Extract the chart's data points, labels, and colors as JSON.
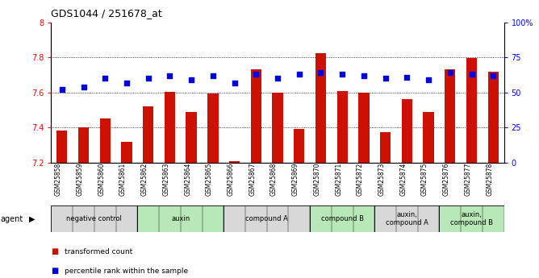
{
  "title": "GDS1044 / 251678_at",
  "samples": [
    "GSM25858",
    "GSM25859",
    "GSM25860",
    "GSM25861",
    "GSM25862",
    "GSM25863",
    "GSM25864",
    "GSM25865",
    "GSM25866",
    "GSM25867",
    "GSM25868",
    "GSM25869",
    "GSM25870",
    "GSM25871",
    "GSM25872",
    "GSM25873",
    "GSM25874",
    "GSM25875",
    "GSM25876",
    "GSM25877",
    "GSM25878"
  ],
  "bar_values": [
    7.385,
    7.4,
    7.45,
    7.32,
    7.52,
    7.605,
    7.49,
    7.595,
    7.21,
    7.73,
    7.6,
    7.39,
    7.825,
    7.61,
    7.6,
    7.375,
    7.56,
    7.49,
    7.73,
    7.795,
    7.72
  ],
  "percentile_values": [
    52,
    54,
    60,
    57,
    60,
    62,
    59,
    62,
    57,
    63,
    60,
    63,
    64,
    63,
    62,
    60,
    61,
    59,
    64,
    63,
    62
  ],
  "ylim_left": [
    7.2,
    8.0
  ],
  "ylim_right": [
    0,
    100
  ],
  "yticks_left": [
    7.2,
    7.4,
    7.6,
    7.8,
    8.0
  ],
  "ytick_labels_left": [
    "7.2",
    "7.4",
    "7.6",
    "7.8",
    "8"
  ],
  "yticks_right": [
    0,
    25,
    50,
    75,
    100
  ],
  "ytick_labels_right": [
    "0",
    "25",
    "50",
    "75",
    "100%"
  ],
  "groups": [
    {
      "label": "negative control",
      "start": 0,
      "end": 3,
      "color": "#d8d8d8"
    },
    {
      "label": "auxin",
      "start": 4,
      "end": 7,
      "color": "#b8e8b8"
    },
    {
      "label": "compound A",
      "start": 8,
      "end": 11,
      "color": "#d8d8d8"
    },
    {
      "label": "compound B",
      "start": 12,
      "end": 14,
      "color": "#b8e8b8"
    },
    {
      "label": "auxin,\ncompound A",
      "start": 15,
      "end": 17,
      "color": "#d8d8d8"
    },
    {
      "label": "auxin,\ncompound B",
      "start": 18,
      "end": 20,
      "color": "#b8e8b8"
    }
  ],
  "bar_color": "#cc1100",
  "dot_color": "#0000dd",
  "bar_bottom": 7.2,
  "bar_width": 0.5,
  "dot_size": 22,
  "legend_items": [
    "transformed count",
    "percentile rank within the sample"
  ],
  "legend_colors": [
    "#cc1100",
    "#0000dd"
  ]
}
